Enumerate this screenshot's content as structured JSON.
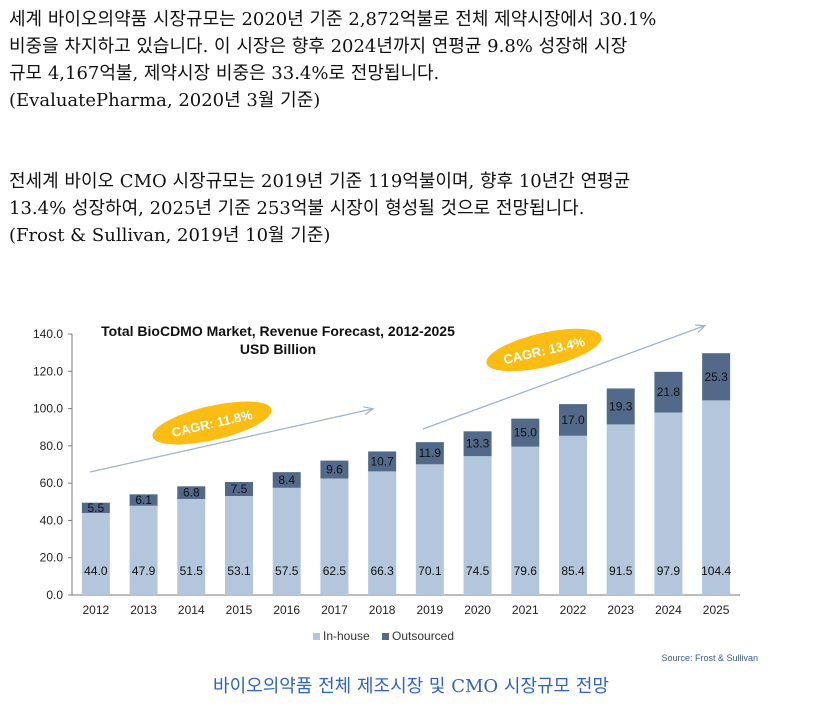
{
  "paragraph1": {
    "lines": [
      "세계 바이오의약품 시장규모는 2020년 기준 2,872억불로 전체 제약시장에서 30.1%",
      "비중을 차지하고 있습니다. 이 시장은 향후 2024년까지 연평균 9.8% 성장해 시장",
      "규모 4,167억불, 제약시장 비중은 33.4%로 전망됩니다.",
      "(EvaluatePharma, 2020년 3월 기준)"
    ]
  },
  "paragraph2": {
    "lines": [
      "전세계 바이오 CMO 시장규모는 2019년 기준 119억불이며, 향후 10년간 연평균",
      "13.4% 성장하여, 2025년 기준 253억불 시장이 형성될 것으로 전망됩니다.",
      "(Frost & Sullivan, 2019년 10월 기준)"
    ]
  },
  "caption": "바이오의약품 전체 제조시장 및 CMO 시장규모 전망",
  "colors": {
    "inhouse": "#b3c6dc",
    "outsourced": "#53698a",
    "cagr_fill": "#fbbd14",
    "cagr_text": "#ffffff",
    "arrow": "#9eb2c9",
    "caption": "#2f62c8"
  },
  "chart_data": {
    "type": "bar",
    "stacked": true,
    "title": "Total BioCDMO Market, Revenue Forecast, 2012-2025",
    "subtitle": "USD Billion",
    "categories": [
      "2012",
      "2013",
      "2014",
      "2015",
      "2016",
      "2017",
      "2018",
      "2019",
      "2020",
      "2021",
      "2022",
      "2023",
      "2024",
      "2025"
    ],
    "series": [
      {
        "name": "In-house",
        "values": [
          44.0,
          47.9,
          51.5,
          53.1,
          57.5,
          62.5,
          66.3,
          70.1,
          74.5,
          79.6,
          85.4,
          91.5,
          97.9,
          104.4
        ]
      },
      {
        "name": "Outsourced",
        "values": [
          5.5,
          6.1,
          6.8,
          7.5,
          8.4,
          9.6,
          10.7,
          11.9,
          13.3,
          15.0,
          17.0,
          19.3,
          21.8,
          25.3
        ]
      }
    ],
    "ylim": [
      0,
      140
    ],
    "yticks": [
      "0.0",
      "20.0",
      "40.0",
      "60.0",
      "80.0",
      "100.0",
      "120.0",
      "140.0"
    ],
    "annotations": [
      "CAGR: 11.8%",
      "CAGR: 13.4%"
    ],
    "legend": "bottom-center",
    "source": "Source: Frost & Sullivan",
    "grid": false
  }
}
